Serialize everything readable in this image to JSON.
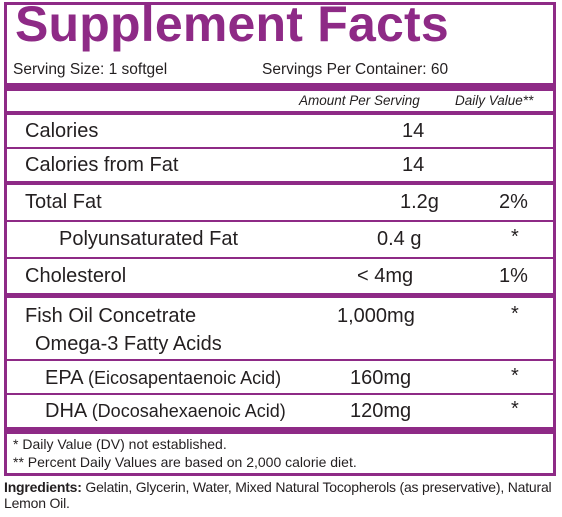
{
  "title": "Supplement Facts",
  "serving_size": "Serving Size: 1 softgel",
  "servings_per_container": "Servings Per Container: 60",
  "header": {
    "amount": "Amount Per Serving",
    "dv": "Daily Value**"
  },
  "rows": [
    {
      "name": "Calories",
      "amount": "14",
      "dv": ""
    },
    {
      "name": "Calories from Fat",
      "amount": "14",
      "dv": ""
    },
    {
      "name": "Total Fat",
      "amount": "1.2g",
      "dv": "2%"
    },
    {
      "name": "Polyunsaturated Fat",
      "amount": "0.4 g",
      "dv": "*"
    },
    {
      "name": "Cholesterol",
      "amount": "< 4mg",
      "dv": "1%"
    },
    {
      "name": "Fish Oil Concetrate",
      "amount": "1,000mg",
      "dv": "*"
    },
    {
      "name": "Omega-3 Fatty Acids",
      "amount": "",
      "dv": ""
    },
    {
      "name": "EPA ",
      "name_detail": "(Eicosapentaenoic Acid)",
      "amount": "160mg",
      "dv": "*"
    },
    {
      "name": "DHA ",
      "name_detail": "(Docosahexaenoic Acid)",
      "amount": "120mg",
      "dv": "*"
    }
  ],
  "footnotes": [
    "*  Daily Value (DV) not established.",
    "** Percent Daily Values are based on 2,000 calorie diet."
  ],
  "ingredients": {
    "label": "Ingredients:",
    "text": " Gelatin, Glycerin, Water, Mixed Natural Tocopherols (as preservative), Natural Lemon Oil."
  },
  "colors": {
    "accent": "#8e2a86",
    "text": "#231f20"
  }
}
